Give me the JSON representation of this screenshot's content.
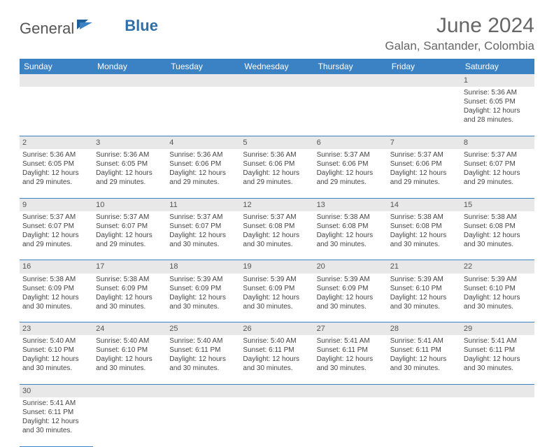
{
  "brand": {
    "part1": "General",
    "part2": "Blue"
  },
  "title": "June 2024",
  "location": "Galan, Santander, Colombia",
  "colors": {
    "header_bg": "#3b82c4",
    "header_text": "#ffffff",
    "daynum_bg": "#e8e8e8",
    "rule": "#3b82c4",
    "text": "#444444",
    "title_text": "#666666"
  },
  "weekdays": [
    "Sunday",
    "Monday",
    "Tuesday",
    "Wednesday",
    "Thursday",
    "Friday",
    "Saturday"
  ],
  "weeks": [
    [
      null,
      null,
      null,
      null,
      null,
      null,
      {
        "n": "1",
        "sr": "Sunrise: 5:36 AM",
        "ss": "Sunset: 6:05 PM",
        "d1": "Daylight: 12 hours",
        "d2": "and 28 minutes."
      }
    ],
    [
      {
        "n": "2",
        "sr": "Sunrise: 5:36 AM",
        "ss": "Sunset: 6:05 PM",
        "d1": "Daylight: 12 hours",
        "d2": "and 29 minutes."
      },
      {
        "n": "3",
        "sr": "Sunrise: 5:36 AM",
        "ss": "Sunset: 6:05 PM",
        "d1": "Daylight: 12 hours",
        "d2": "and 29 minutes."
      },
      {
        "n": "4",
        "sr": "Sunrise: 5:36 AM",
        "ss": "Sunset: 6:06 PM",
        "d1": "Daylight: 12 hours",
        "d2": "and 29 minutes."
      },
      {
        "n": "5",
        "sr": "Sunrise: 5:36 AM",
        "ss": "Sunset: 6:06 PM",
        "d1": "Daylight: 12 hours",
        "d2": "and 29 minutes."
      },
      {
        "n": "6",
        "sr": "Sunrise: 5:37 AM",
        "ss": "Sunset: 6:06 PM",
        "d1": "Daylight: 12 hours",
        "d2": "and 29 minutes."
      },
      {
        "n": "7",
        "sr": "Sunrise: 5:37 AM",
        "ss": "Sunset: 6:06 PM",
        "d1": "Daylight: 12 hours",
        "d2": "and 29 minutes."
      },
      {
        "n": "8",
        "sr": "Sunrise: 5:37 AM",
        "ss": "Sunset: 6:07 PM",
        "d1": "Daylight: 12 hours",
        "d2": "and 29 minutes."
      }
    ],
    [
      {
        "n": "9",
        "sr": "Sunrise: 5:37 AM",
        "ss": "Sunset: 6:07 PM",
        "d1": "Daylight: 12 hours",
        "d2": "and 29 minutes."
      },
      {
        "n": "10",
        "sr": "Sunrise: 5:37 AM",
        "ss": "Sunset: 6:07 PM",
        "d1": "Daylight: 12 hours",
        "d2": "and 29 minutes."
      },
      {
        "n": "11",
        "sr": "Sunrise: 5:37 AM",
        "ss": "Sunset: 6:07 PM",
        "d1": "Daylight: 12 hours",
        "d2": "and 30 minutes."
      },
      {
        "n": "12",
        "sr": "Sunrise: 5:37 AM",
        "ss": "Sunset: 6:08 PM",
        "d1": "Daylight: 12 hours",
        "d2": "and 30 minutes."
      },
      {
        "n": "13",
        "sr": "Sunrise: 5:38 AM",
        "ss": "Sunset: 6:08 PM",
        "d1": "Daylight: 12 hours",
        "d2": "and 30 minutes."
      },
      {
        "n": "14",
        "sr": "Sunrise: 5:38 AM",
        "ss": "Sunset: 6:08 PM",
        "d1": "Daylight: 12 hours",
        "d2": "and 30 minutes."
      },
      {
        "n": "15",
        "sr": "Sunrise: 5:38 AM",
        "ss": "Sunset: 6:08 PM",
        "d1": "Daylight: 12 hours",
        "d2": "and 30 minutes."
      }
    ],
    [
      {
        "n": "16",
        "sr": "Sunrise: 5:38 AM",
        "ss": "Sunset: 6:09 PM",
        "d1": "Daylight: 12 hours",
        "d2": "and 30 minutes."
      },
      {
        "n": "17",
        "sr": "Sunrise: 5:38 AM",
        "ss": "Sunset: 6:09 PM",
        "d1": "Daylight: 12 hours",
        "d2": "and 30 minutes."
      },
      {
        "n": "18",
        "sr": "Sunrise: 5:39 AM",
        "ss": "Sunset: 6:09 PM",
        "d1": "Daylight: 12 hours",
        "d2": "and 30 minutes."
      },
      {
        "n": "19",
        "sr": "Sunrise: 5:39 AM",
        "ss": "Sunset: 6:09 PM",
        "d1": "Daylight: 12 hours",
        "d2": "and 30 minutes."
      },
      {
        "n": "20",
        "sr": "Sunrise: 5:39 AM",
        "ss": "Sunset: 6:09 PM",
        "d1": "Daylight: 12 hours",
        "d2": "and 30 minutes."
      },
      {
        "n": "21",
        "sr": "Sunrise: 5:39 AM",
        "ss": "Sunset: 6:10 PM",
        "d1": "Daylight: 12 hours",
        "d2": "and 30 minutes."
      },
      {
        "n": "22",
        "sr": "Sunrise: 5:39 AM",
        "ss": "Sunset: 6:10 PM",
        "d1": "Daylight: 12 hours",
        "d2": "and 30 minutes."
      }
    ],
    [
      {
        "n": "23",
        "sr": "Sunrise: 5:40 AM",
        "ss": "Sunset: 6:10 PM",
        "d1": "Daylight: 12 hours",
        "d2": "and 30 minutes."
      },
      {
        "n": "24",
        "sr": "Sunrise: 5:40 AM",
        "ss": "Sunset: 6:10 PM",
        "d1": "Daylight: 12 hours",
        "d2": "and 30 minutes."
      },
      {
        "n": "25",
        "sr": "Sunrise: 5:40 AM",
        "ss": "Sunset: 6:11 PM",
        "d1": "Daylight: 12 hours",
        "d2": "and 30 minutes."
      },
      {
        "n": "26",
        "sr": "Sunrise: 5:40 AM",
        "ss": "Sunset: 6:11 PM",
        "d1": "Daylight: 12 hours",
        "d2": "and 30 minutes."
      },
      {
        "n": "27",
        "sr": "Sunrise: 5:41 AM",
        "ss": "Sunset: 6:11 PM",
        "d1": "Daylight: 12 hours",
        "d2": "and 30 minutes."
      },
      {
        "n": "28",
        "sr": "Sunrise: 5:41 AM",
        "ss": "Sunset: 6:11 PM",
        "d1": "Daylight: 12 hours",
        "d2": "and 30 minutes."
      },
      {
        "n": "29",
        "sr": "Sunrise: 5:41 AM",
        "ss": "Sunset: 6:11 PM",
        "d1": "Daylight: 12 hours",
        "d2": "and 30 minutes."
      }
    ],
    [
      {
        "n": "30",
        "sr": "Sunrise: 5:41 AM",
        "ss": "Sunset: 6:11 PM",
        "d1": "Daylight: 12 hours",
        "d2": "and 30 minutes."
      },
      null,
      null,
      null,
      null,
      null,
      null
    ]
  ]
}
